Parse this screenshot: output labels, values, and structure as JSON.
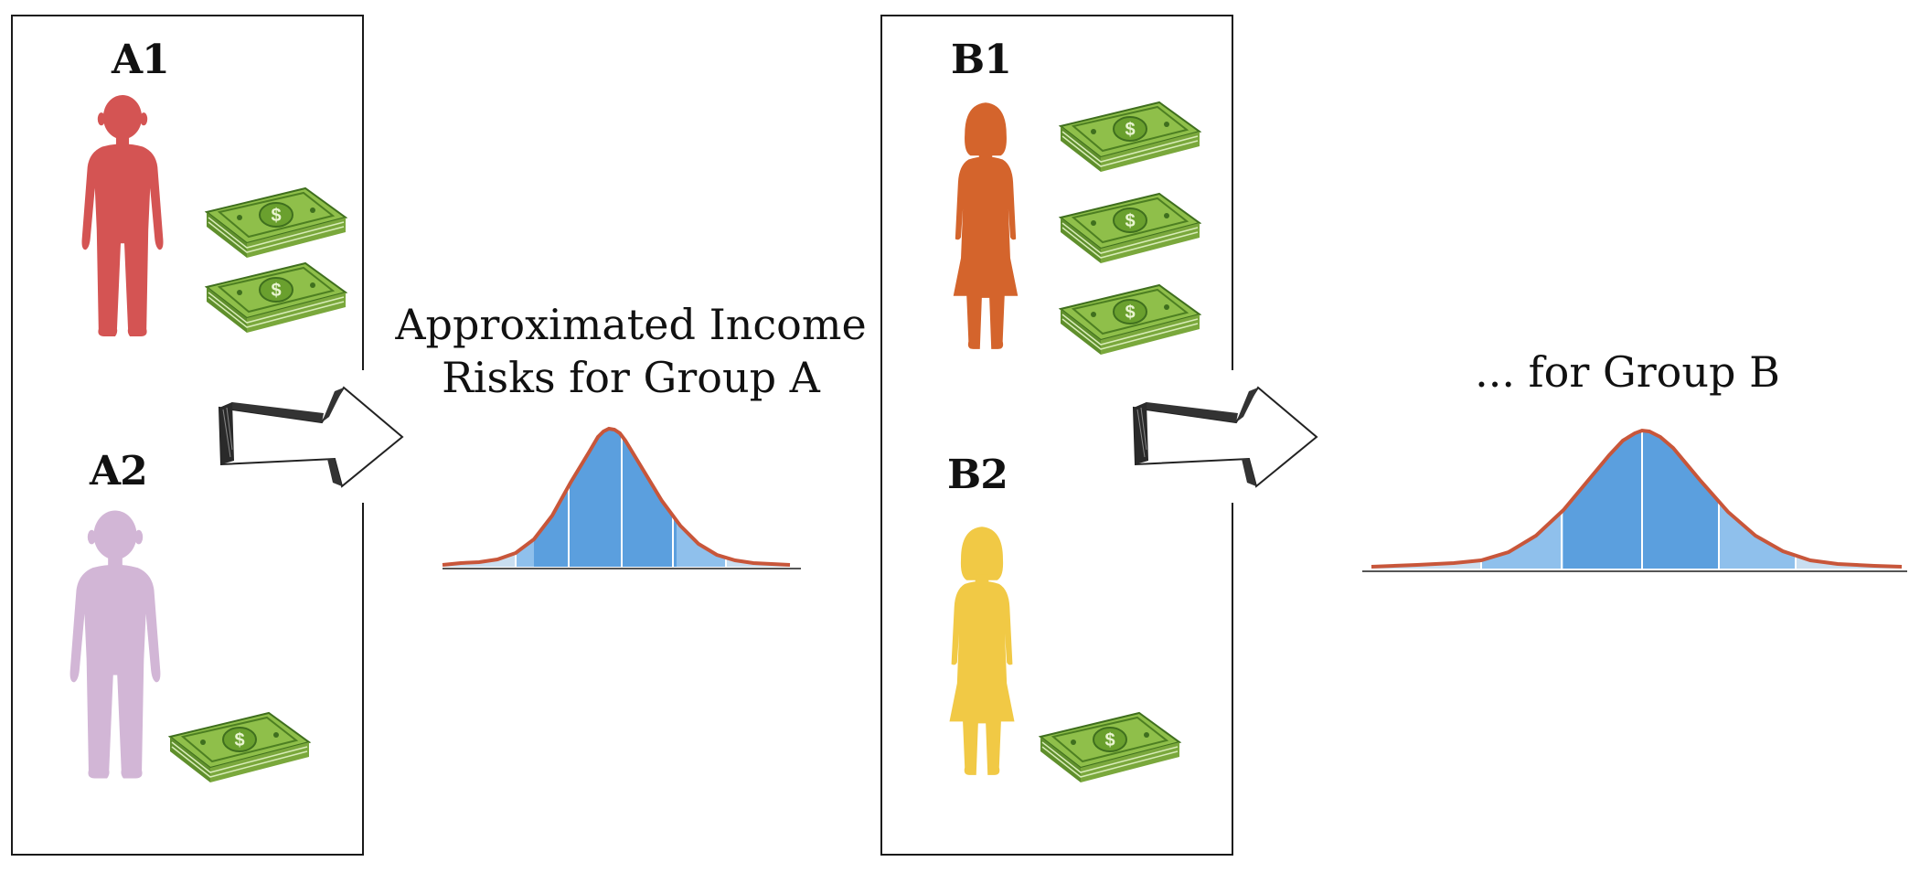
{
  "group_a": {
    "person_1_label": "A1",
    "person_2_label": "A2",
    "distribution_title_line1": "Approximated Income",
    "distribution_title_line2": "Risks for Group A"
  },
  "group_b": {
    "person_1_label": "B1",
    "person_2_label": "B2",
    "distribution_title": "... for Group B"
  },
  "colors": {
    "person_a1": "#d45453",
    "person_a2": "#d2b6d6",
    "person_b1": "#d4642c",
    "person_b2": "#f1c945",
    "curve": "#c8563a",
    "fill_center": "#5b9fde",
    "fill_outer": "#8fc0ec",
    "money": "#8fbf4a"
  },
  "icons": [
    "person-silhouette-icon",
    "money-stack-icon",
    "arrow-right-icon"
  ]
}
